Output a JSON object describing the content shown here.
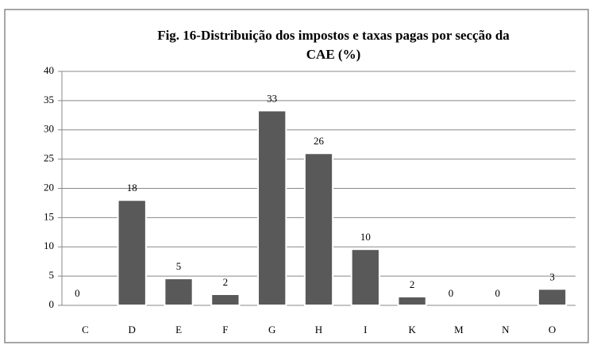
{
  "chart_data": {
    "type": "bar",
    "title": [
      "Fig. 16-Distribuição dos impostos e taxas  pagas por secção da",
      "CAE (%)"
    ],
    "categories": [
      "C",
      "D",
      "E",
      "F",
      "G",
      "H",
      "I",
      "K",
      "M",
      "N",
      "O"
    ],
    "values": [
      0,
      18,
      4.6,
      1.9,
      33.3,
      26,
      9.6,
      1.5,
      0,
      0,
      2.8
    ],
    "value_labels": [
      "0",
      "18",
      "5",
      "2",
      "33",
      "26",
      "10",
      "2",
      "0",
      "0",
      "3"
    ],
    "color": "#595959",
    "ylim": [
      0,
      40
    ],
    "yticks": [
      0,
      5,
      10,
      15,
      20,
      25,
      30,
      35,
      40
    ],
    "grid": true
  }
}
